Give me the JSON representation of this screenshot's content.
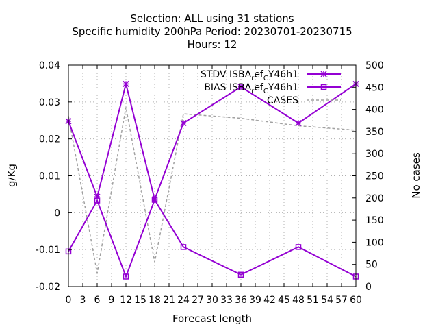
{
  "chart_data": {
    "type": "line",
    "title_lines": [
      "Selection: ALL using    31 stations",
      "Specific humidity 200hPa   Period: 20230701-20230715",
      "Hours:  12"
    ],
    "xlabel": "Forecast length",
    "ylabel": "g/Kg",
    "y2label": "No cases",
    "xlim": [
      0,
      60
    ],
    "ylim": [
      -0.02,
      0.04
    ],
    "y2lim": [
      0,
      500
    ],
    "xticks": [
      0,
      3,
      6,
      9,
      12,
      15,
      18,
      21,
      24,
      27,
      30,
      33,
      36,
      39,
      42,
      45,
      48,
      51,
      54,
      57,
      60
    ],
    "yticks": [
      -0.02,
      -0.01,
      0,
      0.01,
      0.02,
      0.03,
      0.04
    ],
    "ytick_labels": [
      "-0.02",
      "-0.01",
      "0",
      "0.01",
      "0.02",
      "0.03",
      "0.04"
    ],
    "y2ticks": [
      0,
      50,
      100,
      150,
      200,
      250,
      300,
      350,
      400,
      450,
      500
    ],
    "grid": true,
    "legend_position": "top-right",
    "series": [
      {
        "name_main": "STDV ISBA",
        "name_sub1": "r",
        "name_mid": "ef",
        "name_sub2": "C",
        "name_end": "Y46h1",
        "axis": "y",
        "color": "#9400d3",
        "marker": "x",
        "x": [
          0,
          6,
          12,
          18,
          24,
          36,
          48,
          60
        ],
        "values": [
          0.0248,
          0.0043,
          0.0349,
          0.0036,
          0.0243,
          0.0341,
          0.0243,
          0.0349
        ]
      },
      {
        "name_main": "BIAS ISBA",
        "name_sub1": "r",
        "name_mid": "ef",
        "name_sub2": "C",
        "name_end": "Y46h1",
        "axis": "y",
        "color": "#9400d3",
        "marker": "square",
        "x": [
          0,
          6,
          12,
          18,
          24,
          36,
          48,
          60
        ],
        "values": [
          -0.0105,
          0.0033,
          -0.0173,
          0.0035,
          -0.0093,
          -0.0168,
          -0.0093,
          -0.0173
        ]
      },
      {
        "name": "CASES",
        "axis": "y2",
        "color": "#a0a0a0",
        "dashed": true,
        "x": [
          0,
          6,
          12,
          18,
          24,
          36,
          48,
          60
        ],
        "values": [
          385,
          30,
          405,
          55,
          390,
          380,
          363,
          353
        ]
      }
    ]
  }
}
